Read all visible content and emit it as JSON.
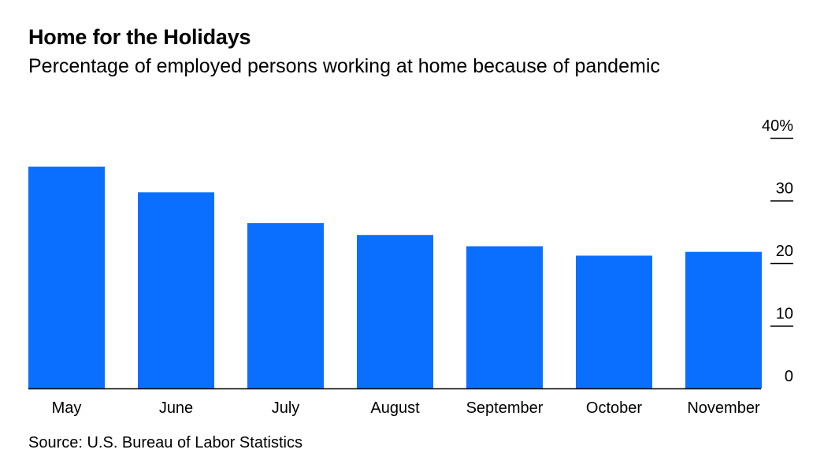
{
  "title": "Home for the Holidays",
  "subtitle": "Percentage of employed persons working at home because of pandemic",
  "source": "Source: U.S. Bureau of Labor Statistics",
  "colors": {
    "bar": "#0a6fff",
    "axis": "#000000",
    "text": "#000000"
  },
  "chart_data": {
    "type": "bar",
    "categories": [
      "May",
      "June",
      "July",
      "August",
      "September",
      "October",
      "November"
    ],
    "values": [
      35.4,
      31.3,
      26.4,
      24.5,
      22.7,
      21.2,
      21.8
    ],
    "ylim": [
      0,
      40
    ],
    "yticks": [
      0,
      10,
      20,
      30,
      40
    ],
    "ytick_labels": [
      "0",
      "10",
      "20",
      "30",
      "40%"
    ],
    "y_axis_position": "right",
    "grid": false,
    "legend": "none",
    "xlabel": "",
    "ylabel": ""
  }
}
